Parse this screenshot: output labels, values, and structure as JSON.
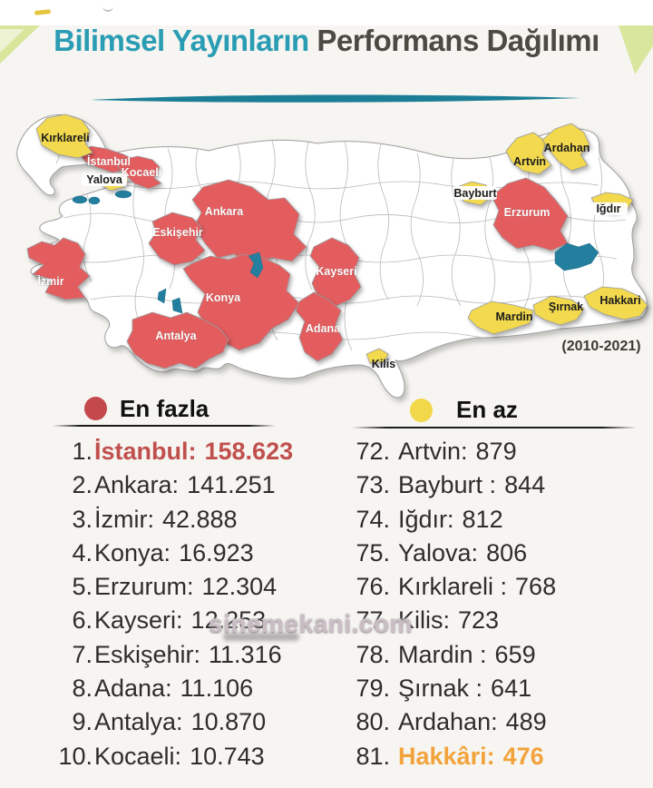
{
  "title": {
    "part1": "Bilimsel Yayınların",
    "part2": "Performans Dağılımı"
  },
  "period_label": "(2010-2021)",
  "legend": {
    "most": {
      "label": "En fazla",
      "color": "#c4494d"
    },
    "least": {
      "label": "En az",
      "color": "#f0d84a"
    }
  },
  "map": {
    "colors": {
      "most": "#e35d5f",
      "least": "#f2d94e",
      "water": "#247f9e",
      "land": "#ffffff"
    },
    "provinces": [
      {
        "label": "İstanbul",
        "status": "most"
      },
      {
        "label": "Kocaeli",
        "status": "most"
      },
      {
        "label": "Yalova",
        "status": "least"
      },
      {
        "label": "Kırklareli",
        "status": "least"
      },
      {
        "label": "İzmir",
        "status": "most"
      },
      {
        "label": "Ankara",
        "status": "most"
      },
      {
        "label": "Eskişehir",
        "status": "most"
      },
      {
        "label": "Konya",
        "status": "most"
      },
      {
        "label": "Antalya",
        "status": "most"
      },
      {
        "label": "Kayseri",
        "status": "most"
      },
      {
        "label": "Adana",
        "status": "most"
      },
      {
        "label": "Erzurum",
        "status": "most"
      },
      {
        "label": "Artvin",
        "status": "least"
      },
      {
        "label": "Ardahan",
        "status": "least"
      },
      {
        "label": "Bayburt",
        "status": "least"
      },
      {
        "label": "Iğdır",
        "status": "least"
      },
      {
        "label": "Mardin",
        "status": "least"
      },
      {
        "label": "Şırnak",
        "status": "least"
      },
      {
        "label": "Hakkari",
        "status": "least"
      },
      {
        "label": "Kilis",
        "status": "least"
      }
    ]
  },
  "lists": {
    "most": [
      {
        "rank": "1.",
        "label": "İstanbul:",
        "value": "158.623",
        "emphasis": "red"
      },
      {
        "rank": "2.",
        "label": "Ankara:",
        "value": "141.251"
      },
      {
        "rank": "3.",
        "label": "İzmir:",
        "value": "42.888"
      },
      {
        "rank": "4.",
        "label": "Konya:",
        "value": "16.923"
      },
      {
        "rank": "5.",
        "label": "Erzurum:",
        "value": "12.304"
      },
      {
        "rank": "6.",
        "label": "Kayseri:",
        "value": "12.253"
      },
      {
        "rank": "7.",
        "label": "Eskişehir:",
        "value": "11.316"
      },
      {
        "rank": "8.",
        "label": "Adana:",
        "value": "11.106"
      },
      {
        "rank": "9.",
        "label": "Antalya:",
        "value": "10.870"
      },
      {
        "rank": "10.",
        "label": "Kocaeli:",
        "value": "10.743"
      }
    ],
    "least": [
      {
        "rank": "72.",
        "label": "Artvin:",
        "value": "879"
      },
      {
        "rank": "73.",
        "label": "Bayburt :",
        "value": "844"
      },
      {
        "rank": "74.",
        "label": "Iğdır:",
        "value": "812"
      },
      {
        "rank": "75.",
        "label": "Yalova:",
        "value": "806"
      },
      {
        "rank": "76.",
        "label": "Kırklareli :",
        "value": "768"
      },
      {
        "rank": "77.",
        "label": "Kilis:",
        "value": "723"
      },
      {
        "rank": "78.",
        "label": "Mardin :",
        "value": "659"
      },
      {
        "rank": "79.",
        "label": "Şırnak :",
        "value": "641"
      },
      {
        "rank": "80.",
        "label": "Ardahan:",
        "value": "489"
      },
      {
        "rank": "81.",
        "label": "Hakkâri:",
        "value": "476",
        "emphasis": "orange"
      }
    ]
  },
  "watermark": "sinemekani.com"
}
